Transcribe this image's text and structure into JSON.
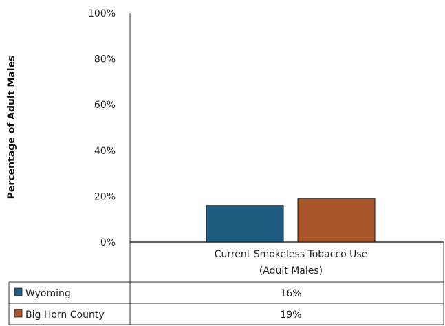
{
  "chart_data": {
    "type": "bar",
    "ylabel": "Percentage of Adult Males",
    "ylim": [
      0,
      100
    ],
    "yticks": [
      "0%",
      "20%",
      "40%",
      "60%",
      "80%",
      "100%"
    ],
    "y_tick_values": [
      0,
      20,
      40,
      60,
      80,
      100
    ],
    "categories": [
      "Current Smokeless Tobacco Use (Adult Males)"
    ],
    "category_lines": [
      [
        "Current Smokeless Tobacco Use",
        "(Adult Males)"
      ]
    ],
    "grid": false,
    "legend": "data-table",
    "series": [
      {
        "name": "Wyoming",
        "values": [
          16
        ],
        "label": "16%",
        "color": "#1f5a80"
      },
      {
        "name": "Big Horn County",
        "values": [
          19
        ],
        "label": "19%",
        "color": "#a9562a"
      }
    ]
  }
}
